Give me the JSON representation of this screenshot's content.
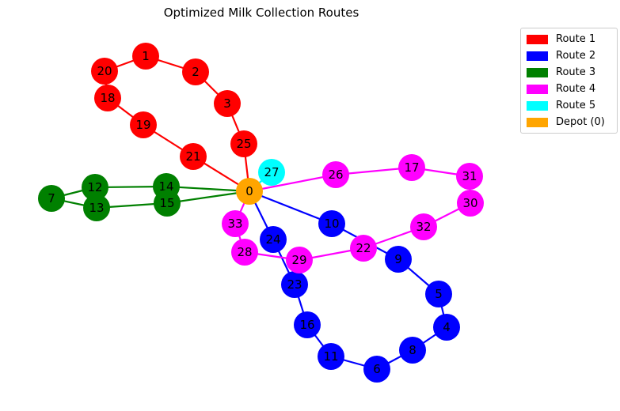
{
  "title": "Optimized Milk Collection Routes",
  "legend": [
    {
      "label": "Route 1",
      "color": "#ff0000"
    },
    {
      "label": "Route 2",
      "color": "#0000ff"
    },
    {
      "label": "Route 3",
      "color": "#008000"
    },
    {
      "label": "Route 4",
      "color": "#ff00ff"
    },
    {
      "label": "Route 5",
      "color": "#00ffff"
    },
    {
      "label": "Depot (0)",
      "color": "#ffa500"
    }
  ],
  "depot": "0",
  "routes": [
    {
      "name": "Route 1",
      "color": "#ff0000",
      "stops": [
        "0",
        "21",
        "19",
        "18",
        "20",
        "1",
        "2",
        "3",
        "25",
        "0"
      ]
    },
    {
      "name": "Route 2",
      "color": "#0000ff",
      "stops": [
        "0",
        "24",
        "23",
        "16",
        "11",
        "6",
        "8",
        "4",
        "5",
        "9",
        "10",
        "0"
      ]
    },
    {
      "name": "Route 3",
      "color": "#008000",
      "stops": [
        "0",
        "14",
        "12",
        "7",
        "13",
        "15",
        "0"
      ]
    },
    {
      "name": "Route 4",
      "color": "#ff00ff",
      "stops": [
        "0",
        "33",
        "28",
        "29",
        "22",
        "32",
        "30",
        "31",
        "17",
        "26",
        "0"
      ]
    },
    {
      "name": "Route 5",
      "color": "#00ffff",
      "stops": [
        "0",
        "27",
        "0"
      ]
    }
  ]
}
